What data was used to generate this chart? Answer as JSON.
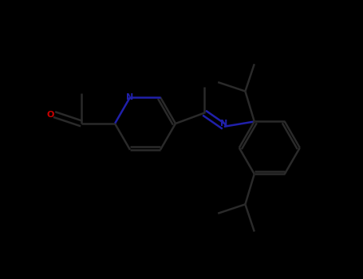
{
  "bg_color": "#000000",
  "bond_color": "#2a2a2a",
  "N_color": "#2020aa",
  "O_color": "#cc0000",
  "line_width": 1.8,
  "dpi": 100,
  "figsize": [
    4.55,
    3.5
  ],
  "xlim": [
    0,
    455
  ],
  "ylim": [
    0,
    350
  ]
}
